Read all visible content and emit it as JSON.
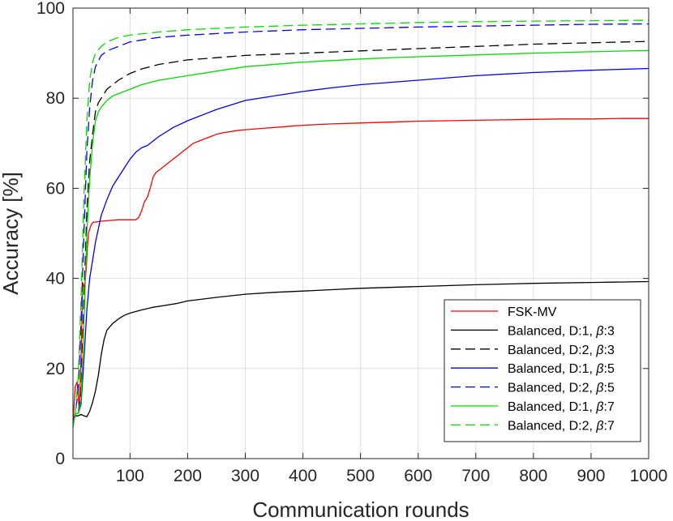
{
  "chart_data": {
    "type": "line",
    "xlabel": "Communication rounds",
    "ylabel": "Accuracy [%]",
    "xlim": [
      1,
      1000
    ],
    "ylim": [
      0,
      100
    ],
    "xticks": [
      100,
      200,
      300,
      400,
      500,
      600,
      700,
      800,
      900,
      1000
    ],
    "yticks": [
      0,
      20,
      40,
      60,
      80,
      100
    ],
    "grid": true,
    "legend_position": "bottom-right",
    "series": [
      {
        "name": "FSK-MV",
        "label_parts": [
          "FSK-MV"
        ],
        "color": "#ff0000",
        "dash": "solid",
        "x": [
          1,
          5,
          8,
          12,
          15,
          18,
          21,
          24,
          26,
          28,
          30,
          33,
          36,
          40,
          45,
          50,
          60,
          70,
          80,
          90,
          100,
          110,
          115,
          120,
          125,
          130,
          135,
          140,
          145,
          150,
          160,
          170,
          180,
          190,
          200,
          210,
          220,
          230,
          240,
          250,
          260,
          270,
          280,
          290,
          300,
          320,
          340,
          360,
          380,
          400,
          450,
          500,
          550,
          600,
          650,
          700,
          750,
          800,
          850,
          900,
          950,
          1000
        ],
        "y": [
          8,
          16,
          17,
          11,
          22,
          39,
          38,
          42,
          47,
          50,
          51,
          52,
          52.5,
          52.5,
          52.6,
          52.7,
          52.8,
          52.9,
          53,
          53,
          53,
          53,
          53.5,
          55,
          57,
          58,
          60,
          62.5,
          63.5,
          64,
          65,
          66,
          67,
          68,
          69,
          70,
          70.5,
          71,
          71.5,
          72,
          72.3,
          72.5,
          72.7,
          72.9,
          73,
          73.2,
          73.4,
          73.6,
          73.8,
          74,
          74.3,
          74.5,
          74.7,
          74.9,
          75,
          75.1,
          75.2,
          75.3,
          75.4,
          75.4,
          75.5,
          75.5
        ]
      },
      {
        "name": "Balanced, D:1, β:3",
        "label_parts": [
          "Balanced, D:1, ",
          "β",
          ":3"
        ],
        "color": "#000000",
        "dash": "solid",
        "x": [
          1,
          5,
          10,
          15,
          20,
          25,
          30,
          35,
          40,
          45,
          50,
          55,
          60,
          70,
          80,
          90,
          100,
          120,
          140,
          160,
          180,
          200,
          250,
          300,
          350,
          400,
          450,
          500,
          600,
          700,
          800,
          900,
          1000
        ],
        "y": [
          8,
          9.5,
          9.5,
          9.8,
          9.5,
          9.3,
          10.5,
          12.5,
          15,
          18.5,
          23,
          26.5,
          28.5,
          30,
          31,
          31.8,
          32.3,
          33,
          33.6,
          34,
          34.4,
          35,
          35.8,
          36.5,
          36.9,
          37.2,
          37.5,
          37.8,
          38.2,
          38.6,
          38.9,
          39.1,
          39.3
        ]
      },
      {
        "name": "Balanced, D:2, β:3",
        "label_parts": [
          "Balanced, D:2, ",
          "β",
          ":3"
        ],
        "color": "#000000",
        "dash": "dashed",
        "x": [
          1,
          5,
          10,
          15,
          20,
          25,
          30,
          35,
          40,
          45,
          50,
          60,
          70,
          80,
          100,
          120,
          150,
          200,
          250,
          300,
          400,
          500,
          600,
          700,
          800,
          900,
          1000
        ],
        "y": [
          8,
          10,
          10,
          15,
          35,
          55,
          66,
          72,
          77,
          79,
          80,
          82,
          83,
          84,
          85.5,
          86.5,
          87.5,
          88.5,
          89,
          89.5,
          90,
          90.5,
          91,
          91.5,
          92,
          92.3,
          92.6
        ]
      },
      {
        "name": "Balanced, D:1, β:5",
        "label_parts": [
          "Balanced, D:1, ",
          "β",
          ":5"
        ],
        "color": "#0000ff",
        "dash": "solid",
        "x": [
          1,
          5,
          10,
          15,
          20,
          25,
          30,
          35,
          40,
          45,
          50,
          60,
          70,
          80,
          90,
          100,
          110,
          120,
          130,
          140,
          150,
          175,
          200,
          250,
          300,
          350,
          400,
          450,
          500,
          600,
          700,
          800,
          900,
          1000
        ],
        "y": [
          8,
          10,
          10,
          12,
          22,
          33,
          40,
          44,
          48,
          51,
          54,
          57.5,
          60.5,
          62.5,
          64.5,
          66.5,
          68,
          69,
          69.5,
          70.5,
          71.5,
          73.5,
          75,
          77.5,
          79.5,
          80.5,
          81.5,
          82.3,
          83,
          84,
          85,
          85.7,
          86.2,
          86.6
        ]
      },
      {
        "name": "Balanced, D:2, β:5",
        "label_parts": [
          "Balanced, D:2, ",
          "β",
          ":5"
        ],
        "color": "#0000ff",
        "dash": "dashed",
        "x": [
          1,
          5,
          10,
          15,
          20,
          25,
          30,
          35,
          40,
          50,
          60,
          80,
          100,
          150,
          200,
          300,
          400,
          500,
          600,
          700,
          800,
          900,
          1000
        ],
        "y": [
          8,
          10,
          15,
          30,
          50,
          68,
          78,
          84,
          87,
          89.5,
          90.5,
          91.5,
          92.5,
          93.5,
          94,
          94.7,
          95.2,
          95.5,
          95.8,
          96,
          96.2,
          96.4,
          96.5
        ]
      },
      {
        "name": "Balanced, D:1, β:7",
        "label_parts": [
          "Balanced, D:1, ",
          "β",
          ":7"
        ],
        "color": "#00dd00",
        "dash": "solid",
        "x": [
          1,
          5,
          10,
          15,
          20,
          25,
          30,
          35,
          40,
          45,
          50,
          60,
          70,
          80,
          100,
          120,
          150,
          200,
          250,
          300,
          400,
          500,
          600,
          700,
          800,
          900,
          1000
        ],
        "y": [
          7,
          10,
          10,
          13,
          30,
          50,
          62,
          70,
          75,
          77,
          78,
          79.5,
          80.5,
          81,
          82,
          83,
          84,
          85,
          86,
          87,
          88,
          88.7,
          89.2,
          89.6,
          90,
          90.3,
          90.6
        ]
      },
      {
        "name": "Balanced, D:2, β:7",
        "label_parts": [
          "Balanced, D:2, ",
          "β",
          ":7"
        ],
        "color": "#00dd00",
        "dash": "dashed",
        "x": [
          1,
          5,
          10,
          15,
          20,
          25,
          30,
          35,
          40,
          50,
          60,
          80,
          100,
          150,
          200,
          300,
          400,
          500,
          600,
          700,
          800,
          900,
          1000
        ],
        "y": [
          7,
          10,
          18,
          35,
          58,
          75,
          84,
          88,
          90,
          91.5,
          92.5,
          93.5,
          94,
          94.7,
          95.2,
          95.8,
          96.2,
          96.5,
          96.8,
          97,
          97.1,
          97.2,
          97.3
        ]
      }
    ]
  }
}
